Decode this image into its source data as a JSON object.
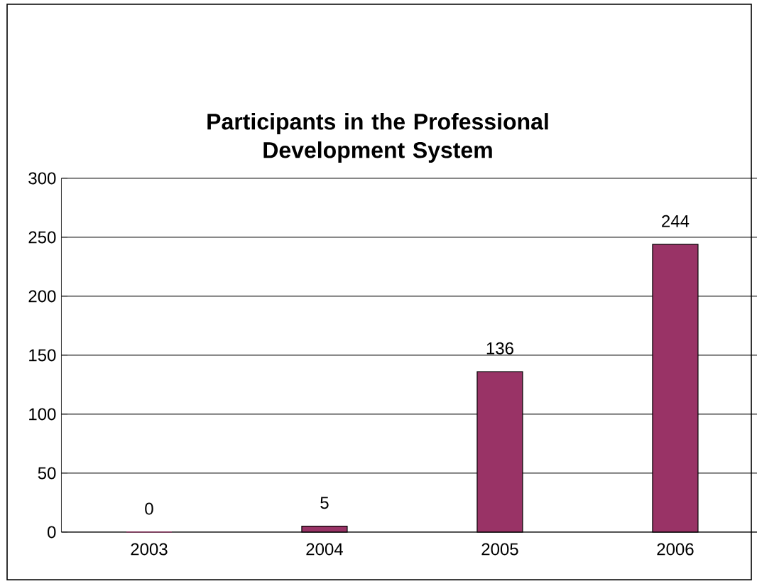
{
  "chart_data": {
    "type": "bar",
    "title": "Participants in the Professional Development System",
    "categories": [
      "2003",
      "2004",
      "2005",
      "2006"
    ],
    "values": [
      0,
      5,
      136,
      244
    ],
    "color": "#993366",
    "ylim": [
      0,
      300
    ],
    "yticks": [
      0,
      50,
      100,
      150,
      200,
      250,
      300
    ],
    "grid": "y",
    "data_labels": true
  }
}
